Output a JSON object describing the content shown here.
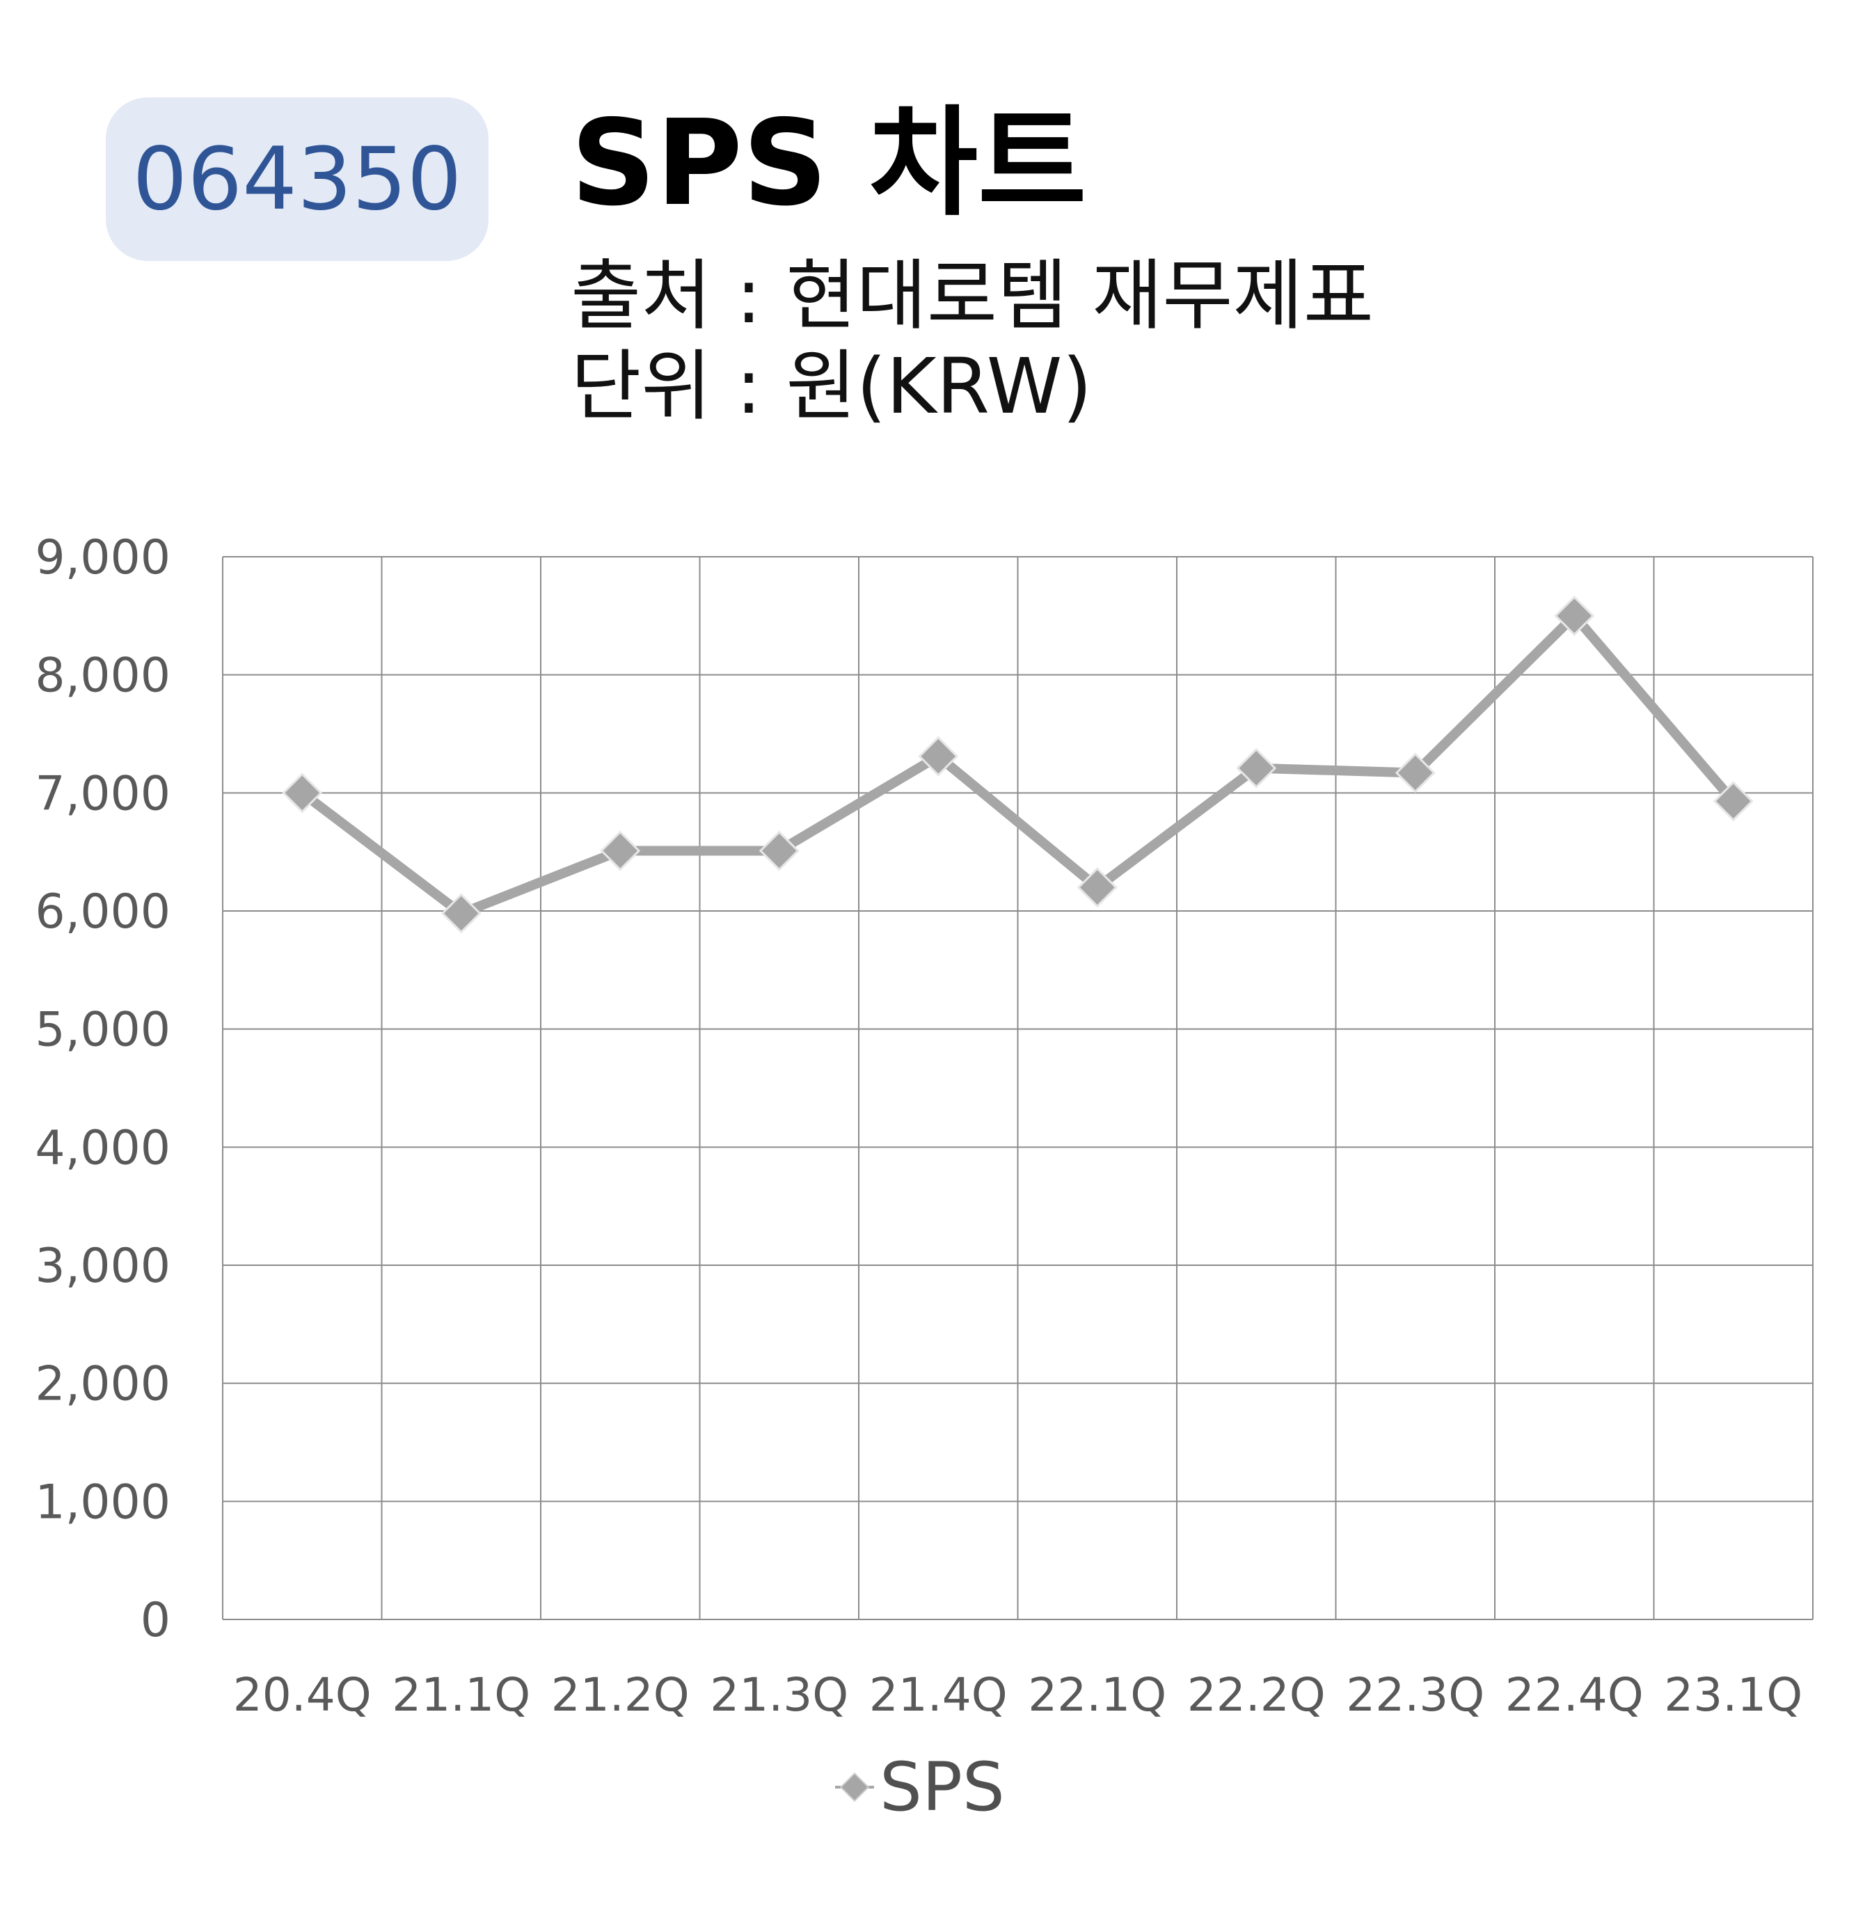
{
  "badge": {
    "code": "064350"
  },
  "header": {
    "title": "SPS 차트",
    "source": "출처 : 현대로템 재무제표",
    "unit": "단위 : 원(KRW)"
  },
  "colors": {
    "badge_bg": "#e3e9f5",
    "badge_text": "#2f5597",
    "series_line": "#a6a6a6",
    "grid": "#8c8c8c"
  },
  "chart_data": {
    "type": "line",
    "categories": [
      "20.4Q",
      "21.1Q",
      "21.2Q",
      "21.3Q",
      "21.4Q",
      "22.1Q",
      "22.2Q",
      "22.3Q",
      "22.4Q",
      "23.1Q"
    ],
    "series": [
      {
        "name": "SPS",
        "values": [
          7000,
          5980,
          6510,
          6510,
          7310,
          6200,
          7210,
          7170,
          8500,
          6930
        ]
      }
    ],
    "ylim": [
      0,
      9000
    ],
    "yticks": [
      0,
      1000,
      2000,
      3000,
      4000,
      5000,
      6000,
      7000,
      8000,
      9000
    ],
    "ytick_labels": [
      "0",
      "1,000",
      "2,000",
      "3,000",
      "4,000",
      "5,000",
      "6,000",
      "7,000",
      "8,000",
      "9,000"
    ],
    "grid": true,
    "legend": "bottom",
    "marker": "diamond"
  }
}
